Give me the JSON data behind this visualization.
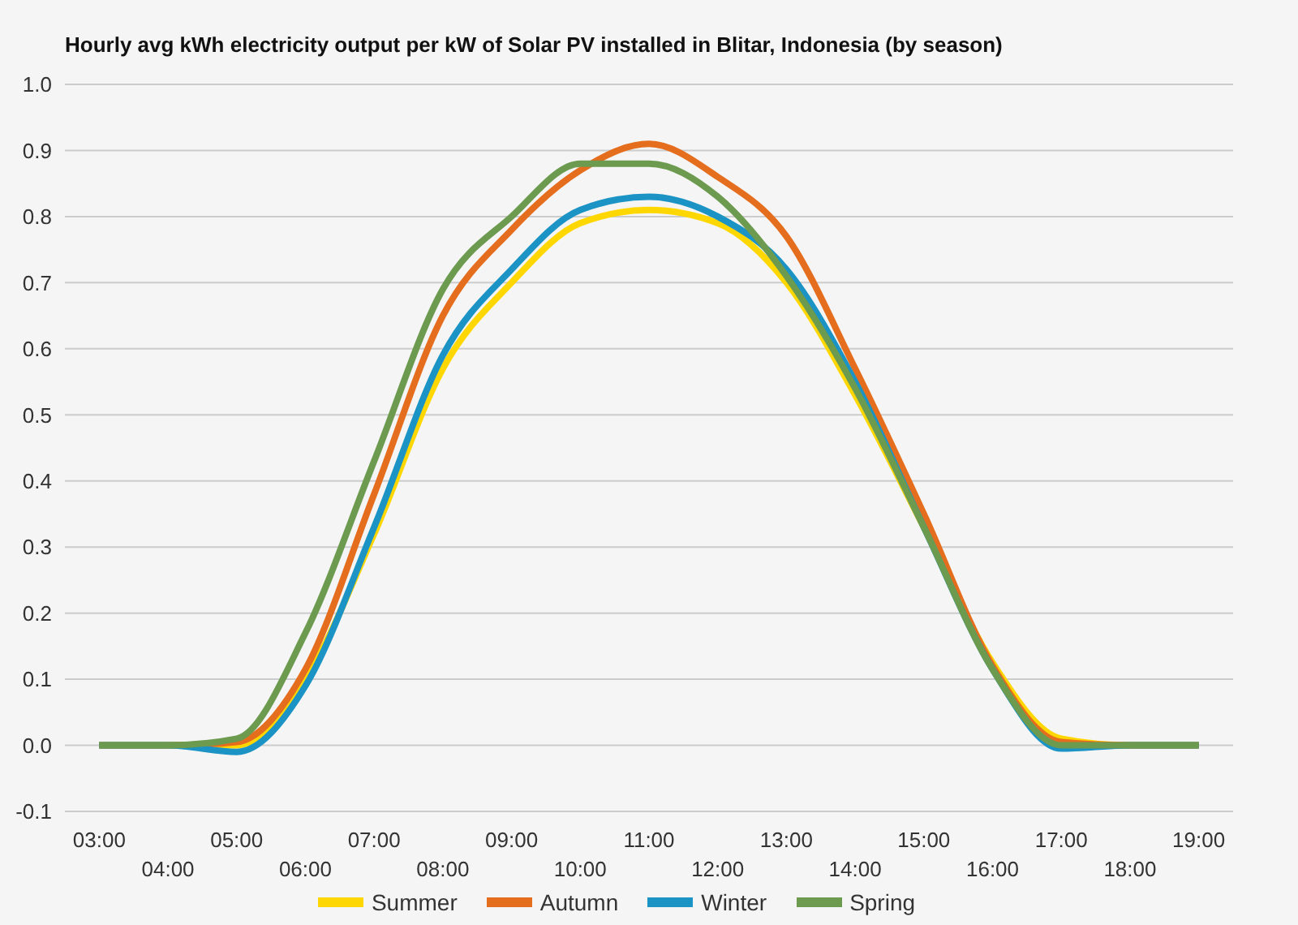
{
  "chart_data": {
    "type": "line",
    "title": "Hourly avg kWh electricity output per kW of Solar PV installed in Blitar, Indonesia (by season)",
    "categories": [
      "03:00",
      "04:00",
      "05:00",
      "06:00",
      "07:00",
      "08:00",
      "09:00",
      "10:00",
      "11:00",
      "12:00",
      "13:00",
      "14:00",
      "15:00",
      "16:00",
      "17:00",
      "18:00",
      "19:00"
    ],
    "series": [
      {
        "name": "Summer",
        "color": "#ffd700",
        "values": [
          0,
          0,
          0,
          0.1,
          0.32,
          0.57,
          0.7,
          0.79,
          0.81,
          0.79,
          0.7,
          0.53,
          0.33,
          0.125,
          0.01,
          0,
          0
        ]
      },
      {
        "name": "Autumn",
        "color": "#e56d1e",
        "values": [
          0,
          0,
          0.005,
          0.115,
          0.38,
          0.65,
          0.78,
          0.87,
          0.91,
          0.86,
          0.77,
          0.57,
          0.35,
          0.12,
          0.005,
          0,
          0
        ]
      },
      {
        "name": "Winter",
        "color": "#1b93c4",
        "values": [
          0,
          0,
          -0.01,
          0.09,
          0.33,
          0.59,
          0.72,
          0.81,
          0.83,
          0.8,
          0.72,
          0.55,
          0.33,
          0.115,
          -0.005,
          0,
          0
        ]
      },
      {
        "name": "Spring",
        "color": "#6c9a4e",
        "values": [
          0,
          0,
          0.01,
          0.17,
          0.43,
          0.69,
          0.8,
          0.88,
          0.88,
          0.83,
          0.71,
          0.54,
          0.33,
          0.115,
          0,
          0,
          0
        ]
      }
    ],
    "ylim": [
      -0.1,
      1.0
    ],
    "yticks": [
      -0.1,
      {
        "value": 0,
        "label": "0.0"
      },
      0.1,
      0.2,
      0.3,
      0.4,
      0.5,
      0.6,
      0.7,
      0.8,
      0.9,
      {
        "value": 1,
        "label": "1.0"
      }
    ],
    "grid": "y",
    "legend": "bottom",
    "marker": "none",
    "line_style": "solid"
  }
}
